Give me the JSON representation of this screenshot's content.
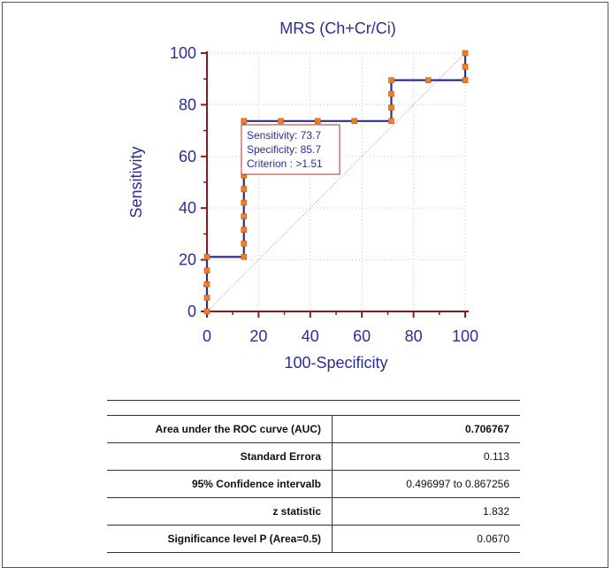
{
  "chart_data": {
    "type": "line",
    "title": "MRS (Ch+Cr/Ci)",
    "xlabel": "100-Specificity",
    "ylabel": "Sensitivity",
    "xlim": [
      0,
      100
    ],
    "ylim": [
      0,
      100
    ],
    "x_ticks": [
      "0",
      "20",
      "40",
      "60",
      "80",
      "100"
    ],
    "y_ticks": [
      "0",
      "20",
      "40",
      "60",
      "80",
      "100"
    ],
    "grid": true,
    "diagonal_reference": true,
    "colors": {
      "curve": "#2b2f8f",
      "marker": "#f07e26",
      "axis": "#8b1a1a",
      "text": "#2b2f8f"
    },
    "series": [
      {
        "x": [
          0,
          0,
          14.3,
          14.3,
          28.6,
          42.9,
          57.1,
          71.4,
          71.4,
          85.7,
          100,
          100
        ],
        "y": [
          0,
          21.1,
          21.1,
          73.7,
          73.7,
          73.7,
          73.7,
          73.7,
          89.5,
          89.5,
          89.5,
          100
        ]
      }
    ],
    "markers": [
      [
        0,
        0
      ],
      [
        0,
        5.3
      ],
      [
        0,
        10.5
      ],
      [
        0,
        15.8
      ],
      [
        0,
        21.1
      ],
      [
        14.3,
        21.1
      ],
      [
        14.3,
        26.3
      ],
      [
        14.3,
        31.6
      ],
      [
        14.3,
        36.8
      ],
      [
        14.3,
        42.1
      ],
      [
        14.3,
        47.4
      ],
      [
        14.3,
        52.6
      ],
      [
        14.3,
        57.9
      ],
      [
        14.3,
        63.2
      ],
      [
        14.3,
        68.4
      ],
      [
        14.3,
        73.7
      ],
      [
        28.6,
        73.7
      ],
      [
        42.9,
        73.7
      ],
      [
        57.1,
        73.7
      ],
      [
        71.4,
        73.7
      ],
      [
        71.4,
        78.9
      ],
      [
        71.4,
        84.2
      ],
      [
        71.4,
        89.5
      ],
      [
        85.7,
        89.5
      ],
      [
        100,
        89.5
      ],
      [
        100,
        94.7
      ],
      [
        100,
        100
      ]
    ],
    "annotation": {
      "at": [
        14.3,
        73.7
      ],
      "lines": [
        "Sensitivity: 73.7",
        "Specificity: 85.7",
        "Criterion : >1.51"
      ]
    }
  },
  "table": {
    "rows": [
      {
        "label": "Area under the ROC curve (AUC)",
        "value": "0.706767",
        "bold": true
      },
      {
        "label": "Standard Errora",
        "value": "0.113",
        "bold": false
      },
      {
        "label": "95% Confidence intervalb",
        "value": "0.496997 to 0.867256",
        "bold": false
      },
      {
        "label": "z statistic",
        "value": "1.832",
        "bold": false
      },
      {
        "label": "Significance level P (Area=0.5)",
        "value": "0.0670",
        "bold": false
      }
    ]
  }
}
